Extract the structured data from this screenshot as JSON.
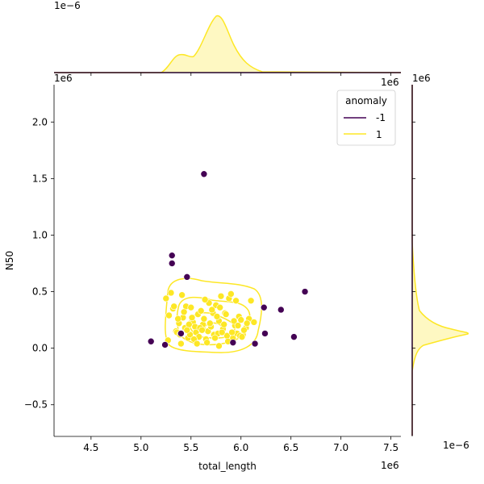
{
  "chart_data": {
    "type": "scatter",
    "xlabel": "total_length",
    "ylabel": "N50",
    "x_offset_label": "1e6",
    "y_offset_label": "1e6",
    "top_marginal_offset_label": "1e−6",
    "right_marginal_offset_label": "1e−6",
    "top_marginal_x_offset_label": "1e6",
    "right_marginal_y_offset_label": "1e6",
    "xlim": [
      4.13,
      7.6
    ],
    "ylim": [
      -0.78,
      2.33
    ],
    "xticks": [
      4.5,
      5.0,
      5.5,
      6.0,
      6.5,
      7.0,
      7.5
    ],
    "xtick_labels": [
      "4.5",
      "5.0",
      "5.5",
      "6.0",
      "6.5",
      "7.0",
      "7.5"
    ],
    "yticks": [
      -0.5,
      0.0,
      0.5,
      1.0,
      1.5,
      2.0
    ],
    "ytick_labels": [
      "−0.5",
      "0.0",
      "0.5",
      "1.0",
      "1.5",
      "2.0"
    ],
    "legend": {
      "title": "anomaly",
      "placement": "top-right",
      "entries": [
        {
          "label": "-1",
          "color": "#440154"
        },
        {
          "label": "1",
          "color": "#fde725"
        }
      ]
    },
    "series": [
      {
        "name": "-1",
        "color": "#440154",
        "x": [
          5.63,
          5.31,
          5.31,
          5.46,
          6.64,
          6.23,
          6.4,
          5.1,
          5.24,
          5.92,
          6.14,
          6.24,
          6.53,
          5.4
        ],
        "y": [
          1.54,
          0.82,
          0.75,
          0.63,
          0.5,
          0.36,
          0.34,
          0.06,
          0.03,
          0.05,
          0.04,
          0.13,
          0.1,
          0.13
        ]
      },
      {
        "name": "1",
        "color": "#fde725",
        "x": [
          5.25,
          5.28,
          5.3,
          5.32,
          5.35,
          5.38,
          5.4,
          5.42,
          5.44,
          5.45,
          5.47,
          5.49,
          5.5,
          5.52,
          5.54,
          5.55,
          5.57,
          5.58,
          5.6,
          5.62,
          5.63,
          5.65,
          5.67,
          5.68,
          5.7,
          5.72,
          5.73,
          5.75,
          5.77,
          5.78,
          5.8,
          5.82,
          5.84,
          5.86,
          5.88,
          5.9,
          5.92,
          5.94,
          5.96,
          5.98,
          6.0,
          6.02,
          6.05,
          6.08,
          6.1,
          6.13,
          5.33,
          5.37,
          5.41,
          5.48,
          5.53,
          5.59,
          5.66,
          5.71,
          5.76,
          5.81,
          5.87,
          5.93,
          5.97,
          6.03,
          5.36,
          5.43,
          5.51,
          5.56,
          5.64,
          5.69,
          5.74,
          5.79,
          5.85,
          5.91,
          5.99,
          6.06,
          5.27,
          5.61,
          5.83,
          5.95,
          5.39,
          5.46,
          5.78,
          6.01
        ],
        "y": [
          0.44,
          0.29,
          0.49,
          0.35,
          0.15,
          0.22,
          0.04,
          0.27,
          0.18,
          0.37,
          0.09,
          0.12,
          0.36,
          0.23,
          0.19,
          0.14,
          0.3,
          0.1,
          0.33,
          0.21,
          0.26,
          0.08,
          0.15,
          0.4,
          0.19,
          0.31,
          0.12,
          0.38,
          0.13,
          0.24,
          0.46,
          0.17,
          0.31,
          0.11,
          0.44,
          0.48,
          0.09,
          0.2,
          0.13,
          0.28,
          0.25,
          0.12,
          0.18,
          0.26,
          0.42,
          0.23,
          0.37,
          0.26,
          0.47,
          0.21,
          0.08,
          0.18,
          0.05,
          0.34,
          0.28,
          0.14,
          0.06,
          0.24,
          0.2,
          0.16,
          0.14,
          0.32,
          0.27,
          0.04,
          0.43,
          0.22,
          0.09,
          0.36,
          0.3,
          0.14,
          0.11,
          0.22,
          0.07,
          0.16,
          0.21,
          0.42,
          0.12,
          0.16,
          0.02,
          0.1
        ]
      }
    ]
  }
}
